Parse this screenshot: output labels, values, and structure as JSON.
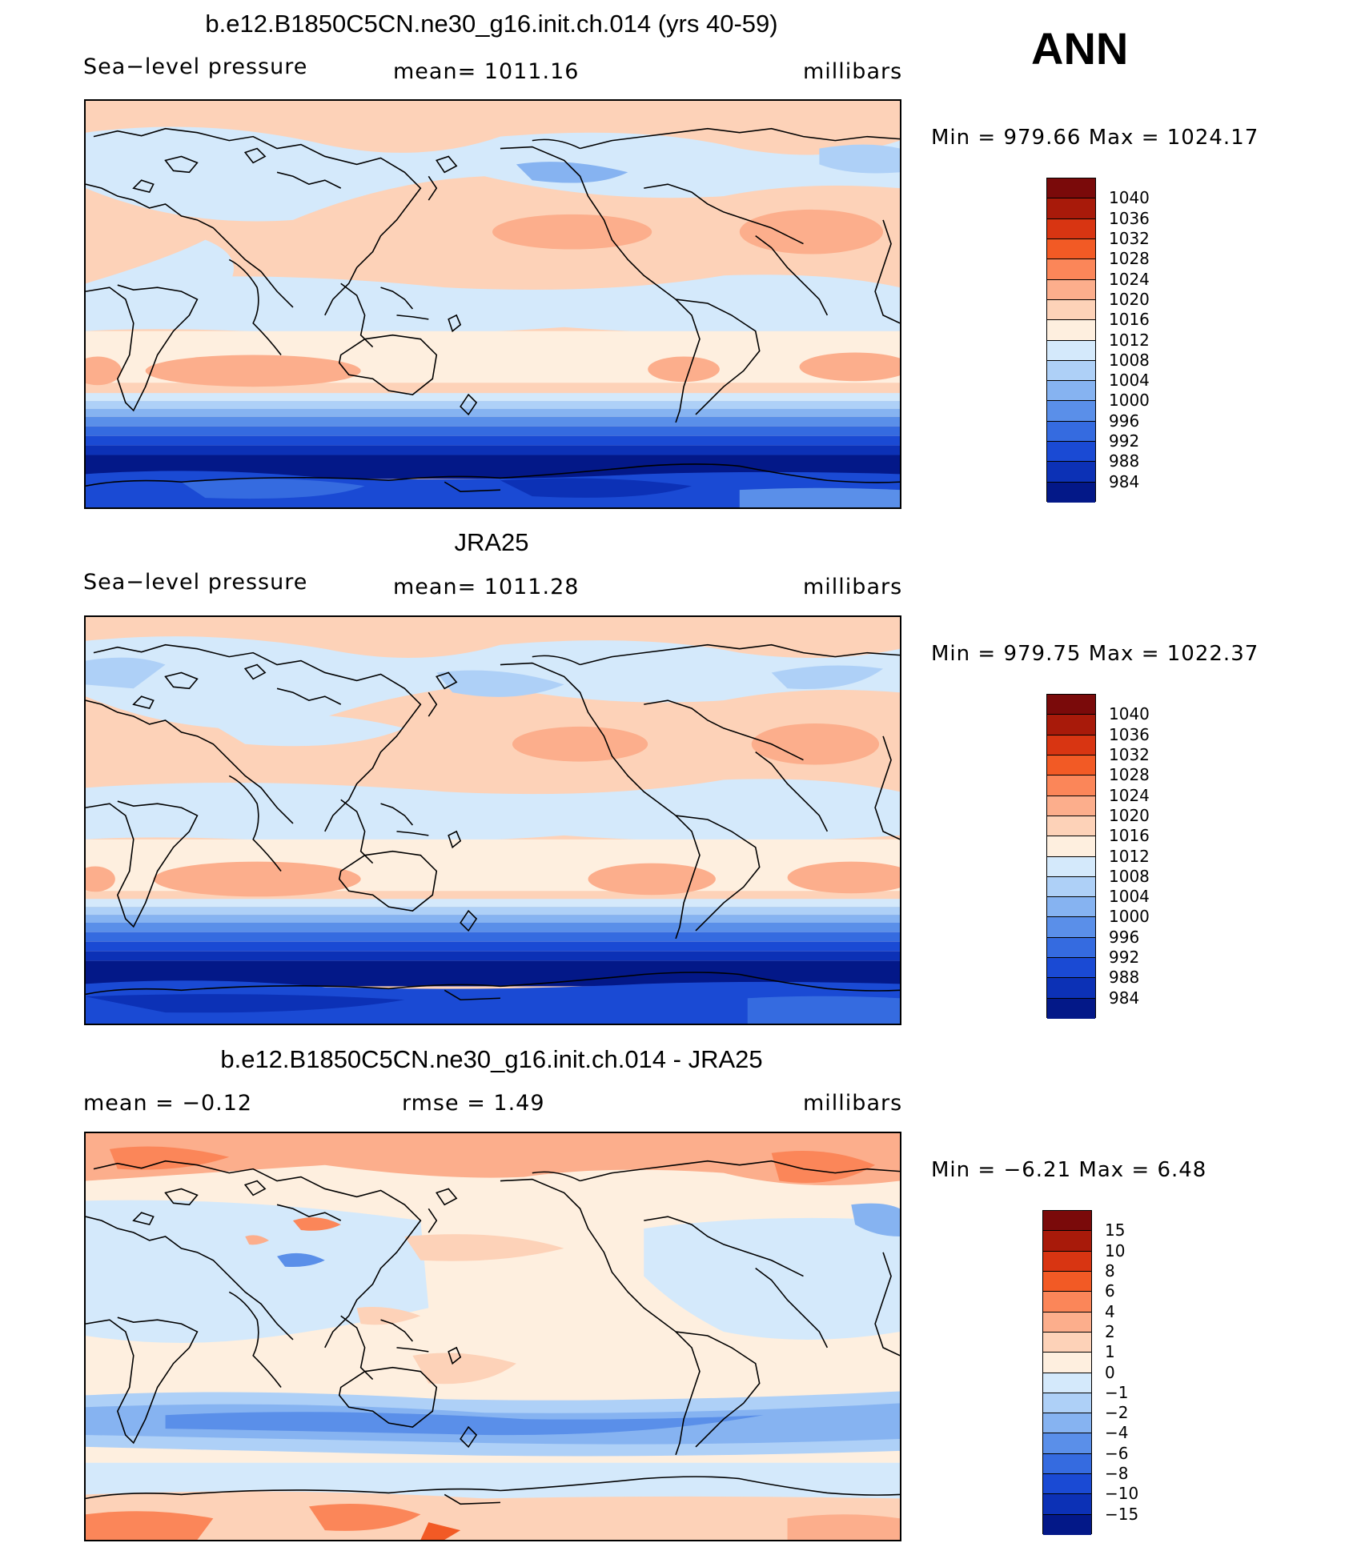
{
  "season": "ANN",
  "palette_slp": [
    "#7a0a0a",
    "#a81a0a",
    "#d83512",
    "#f25a25",
    "#fb8659",
    "#fcae8c",
    "#fdd2b8",
    "#feefdf",
    "#d4e9fb",
    "#aed0f7",
    "#86b3f1",
    "#5a8fe9",
    "#356be0",
    "#1a4ad4",
    "#0c31b6",
    "#031888"
  ],
  "palette_diff": [
    "#7a0a0a",
    "#a81a0a",
    "#d83512",
    "#f25a25",
    "#fb8659",
    "#fcae8c",
    "#fdd2b8",
    "#feefdf",
    "#d4e9fb",
    "#aed0f7",
    "#86b3f1",
    "#5a8fe9",
    "#356be0",
    "#1a4ad4",
    "#0c31b6",
    "#031888"
  ],
  "panels": [
    {
      "title": "b.e12.B1850C5CN.ne30_g16.init.ch.014 (yrs 40-59)",
      "left_label": "Sea−level pressure",
      "center_label": "mean=  1011.16",
      "right_label": "millibars",
      "minmax": "Min  =  979.66  Max  =  1024.17",
      "colorbar_labels": [
        "1040",
        "1036",
        "1032",
        "1028",
        "1024",
        "1020",
        "1016",
        "1012",
        "1008",
        "1004",
        "1000",
        "996",
        "992",
        "988",
        "984"
      ]
    },
    {
      "title": "JRA25",
      "left_label": "Sea−level pressure",
      "center_label": "mean=  1011.28",
      "right_label": "millibars",
      "minmax": "Min  =  979.75  Max  =  1022.37",
      "colorbar_labels": [
        "1040",
        "1036",
        "1032",
        "1028",
        "1024",
        "1020",
        "1016",
        "1012",
        "1008",
        "1004",
        "1000",
        "996",
        "992",
        "988",
        "984"
      ]
    },
    {
      "title": "b.e12.B1850C5CN.ne30_g16.init.ch.014 - JRA25",
      "left_label": "mean  =    −0.12",
      "center_label": "rmse  =     1.49",
      "right_label": "millibars",
      "minmax": "Min  =    −6.21  Max  =     6.48",
      "colorbar_labels": [
        "15",
        "10",
        "8",
        "6",
        "4",
        "2",
        "1",
        "0",
        "−1",
        "−2",
        "−4",
        "−6",
        "−8",
        "−10",
        "−15"
      ]
    }
  ]
}
